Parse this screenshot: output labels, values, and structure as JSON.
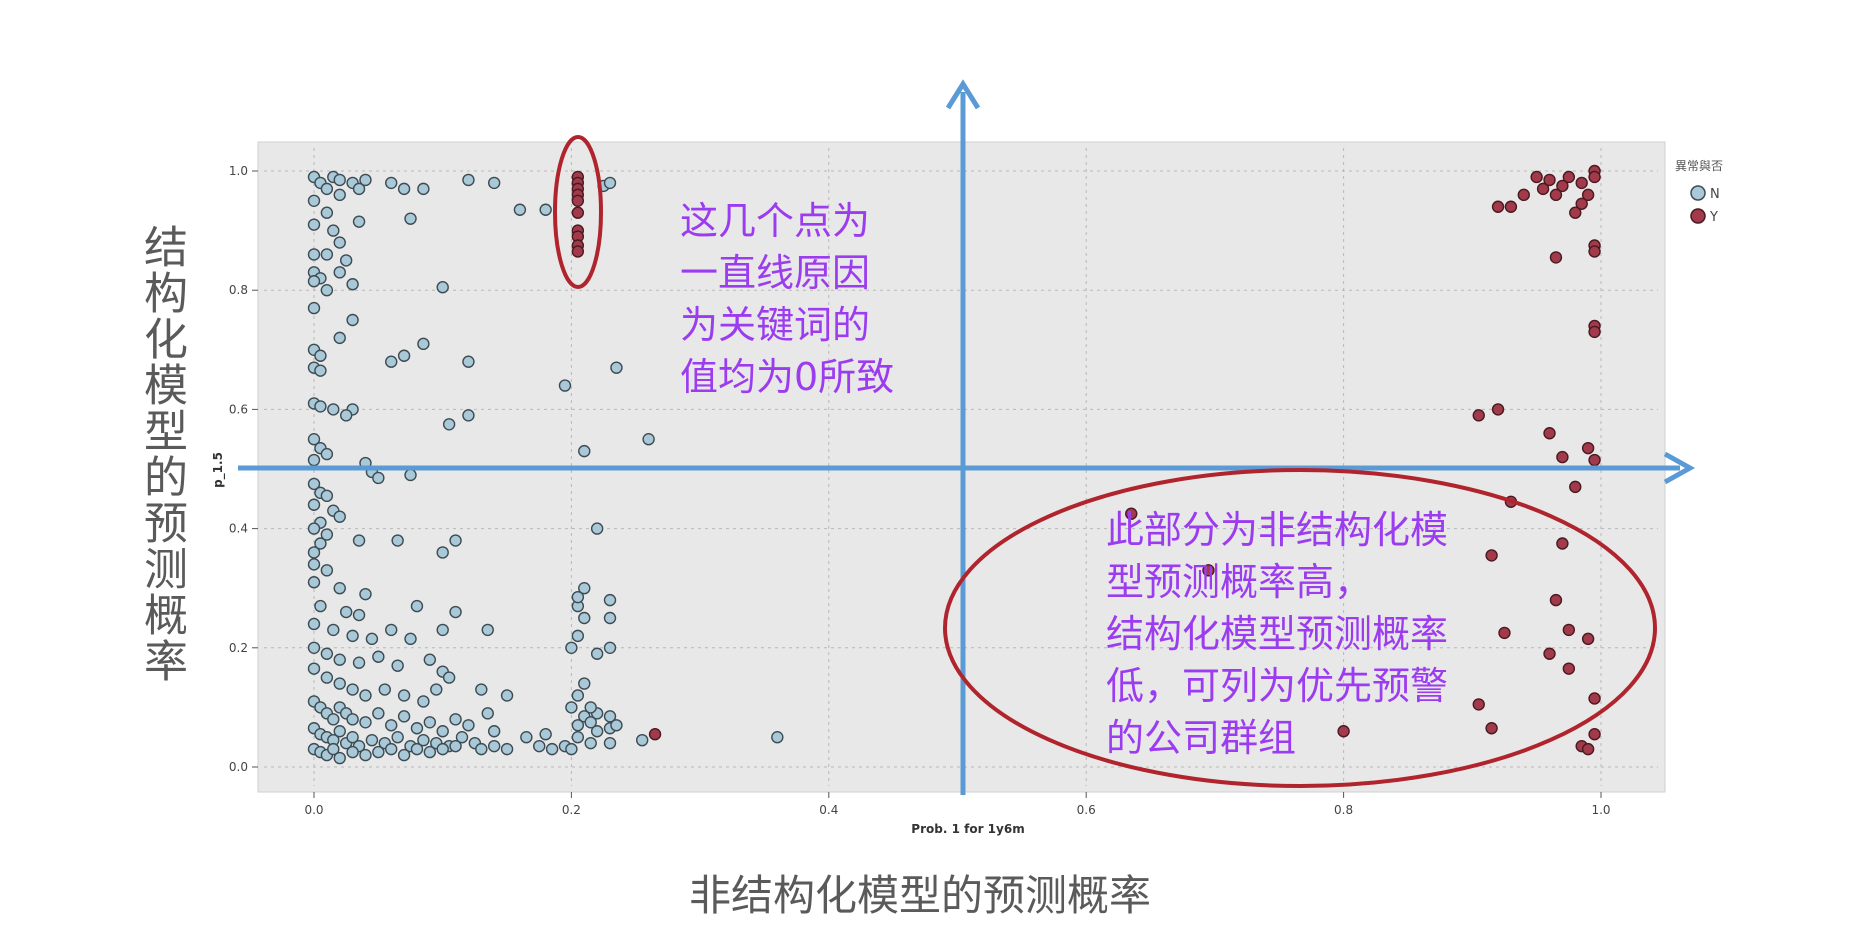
{
  "overlay": {
    "y_axis_title": "结构化模型的预测概率",
    "x_axis_title": "非结构化模型的预测概率",
    "note_straight_line": [
      "这几个点为",
      "一直线原因",
      "为关键词的",
      "值均为0所致"
    ],
    "note_priority": [
      "此部分为非结构化模",
      "型预测概率高，",
      "结构化模型预测概率",
      "低，可列为优先预警",
      "的公司群组"
    ]
  },
  "colors": {
    "panel_bg": "#e8e8e8",
    "point_n": "#a9c9d8",
    "point_y": "#a13a4a",
    "arrow": "#5b9bd5",
    "ellipse": "#b0242d",
    "note_text": "#9c3cf0"
  },
  "chart_data": {
    "type": "scatter",
    "xlabel": "Prob. 1 for 1y6m",
    "ylabel": "p_1.5",
    "xlim": [
      0,
      1.0
    ],
    "ylim": [
      0,
      1.0
    ],
    "xticks": [
      "0.0",
      "0.2",
      "0.4",
      "0.6",
      "0.8",
      "1.0"
    ],
    "yticks": [
      "0.0",
      "0.2",
      "0.4",
      "0.6",
      "0.8",
      "1.0"
    ],
    "grid": true,
    "legend": {
      "title": "異常與否",
      "position": "right",
      "entries": [
        "N",
        "Y"
      ]
    },
    "series": [
      {
        "name": "N",
        "points": [
          [
            0.0,
            0.99
          ],
          [
            0.005,
            0.98
          ],
          [
            0.01,
            0.97
          ],
          [
            0.015,
            0.99
          ],
          [
            0.02,
            0.985
          ],
          [
            0.03,
            0.98
          ],
          [
            0.0,
            0.95
          ],
          [
            0.01,
            0.93
          ],
          [
            0.02,
            0.96
          ],
          [
            0.035,
            0.97
          ],
          [
            0.04,
            0.985
          ],
          [
            0.06,
            0.98
          ],
          [
            0.07,
            0.97
          ],
          [
            0.085,
            0.97
          ],
          [
            0.12,
            0.985
          ],
          [
            0.14,
            0.98
          ],
          [
            0.16,
            0.935
          ],
          [
            0.18,
            0.935
          ],
          [
            0.0,
            0.91
          ],
          [
            0.015,
            0.9
          ],
          [
            0.02,
            0.88
          ],
          [
            0.035,
            0.915
          ],
          [
            0.075,
            0.92
          ],
          [
            0.0,
            0.86
          ],
          [
            0.01,
            0.86
          ],
          [
            0.025,
            0.85
          ],
          [
            0.0,
            0.83
          ],
          [
            0.005,
            0.82
          ],
          [
            0.02,
            0.83
          ],
          [
            0.0,
            0.815
          ],
          [
            0.01,
            0.8
          ],
          [
            0.03,
            0.81
          ],
          [
            0.1,
            0.805
          ],
          [
            0.0,
            0.77
          ],
          [
            0.02,
            0.72
          ],
          [
            0.03,
            0.75
          ],
          [
            0.0,
            0.7
          ],
          [
            0.005,
            0.69
          ],
          [
            0.0,
            0.67
          ],
          [
            0.005,
            0.665
          ],
          [
            0.06,
            0.68
          ],
          [
            0.07,
            0.69
          ],
          [
            0.085,
            0.71
          ],
          [
            0.12,
            0.68
          ],
          [
            0.0,
            0.61
          ],
          [
            0.005,
            0.605
          ],
          [
            0.015,
            0.6
          ],
          [
            0.03,
            0.6
          ],
          [
            0.025,
            0.59
          ],
          [
            0.12,
            0.59
          ],
          [
            0.105,
            0.575
          ],
          [
            0.0,
            0.55
          ],
          [
            0.005,
            0.535
          ],
          [
            0.01,
            0.525
          ],
          [
            0.0,
            0.515
          ],
          [
            0.04,
            0.51
          ],
          [
            0.045,
            0.495
          ],
          [
            0.05,
            0.485
          ],
          [
            0.075,
            0.49
          ],
          [
            0.0,
            0.475
          ],
          [
            0.005,
            0.46
          ],
          [
            0.01,
            0.455
          ],
          [
            0.0,
            0.44
          ],
          [
            0.015,
            0.43
          ],
          [
            0.02,
            0.42
          ],
          [
            0.005,
            0.41
          ],
          [
            0.0,
            0.4
          ],
          [
            0.01,
            0.39
          ],
          [
            0.005,
            0.375
          ],
          [
            0.0,
            0.36
          ],
          [
            0.035,
            0.38
          ],
          [
            0.065,
            0.38
          ],
          [
            0.1,
            0.36
          ],
          [
            0.11,
            0.38
          ],
          [
            0.0,
            0.34
          ],
          [
            0.01,
            0.33
          ],
          [
            0.0,
            0.31
          ],
          [
            0.02,
            0.3
          ],
          [
            0.04,
            0.29
          ],
          [
            0.005,
            0.27
          ],
          [
            0.025,
            0.26
          ],
          [
            0.035,
            0.255
          ],
          [
            0.08,
            0.27
          ],
          [
            0.11,
            0.26
          ],
          [
            0.0,
            0.24
          ],
          [
            0.015,
            0.23
          ],
          [
            0.03,
            0.22
          ],
          [
            0.045,
            0.215
          ],
          [
            0.06,
            0.23
          ],
          [
            0.075,
            0.215
          ],
          [
            0.1,
            0.23
          ],
          [
            0.135,
            0.23
          ],
          [
            0.0,
            0.2
          ],
          [
            0.01,
            0.19
          ],
          [
            0.02,
            0.18
          ],
          [
            0.035,
            0.175
          ],
          [
            0.05,
            0.185
          ],
          [
            0.065,
            0.17
          ],
          [
            0.09,
            0.18
          ],
          [
            0.1,
            0.16
          ],
          [
            0.105,
            0.15
          ],
          [
            0.0,
            0.165
          ],
          [
            0.01,
            0.15
          ],
          [
            0.02,
            0.14
          ],
          [
            0.03,
            0.13
          ],
          [
            0.04,
            0.12
          ],
          [
            0.055,
            0.13
          ],
          [
            0.07,
            0.12
          ],
          [
            0.085,
            0.11
          ],
          [
            0.095,
            0.13
          ],
          [
            0.13,
            0.13
          ],
          [
            0.15,
            0.12
          ],
          [
            0.0,
            0.11
          ],
          [
            0.005,
            0.1
          ],
          [
            0.01,
            0.09
          ],
          [
            0.015,
            0.08
          ],
          [
            0.02,
            0.1
          ],
          [
            0.025,
            0.09
          ],
          [
            0.03,
            0.08
          ],
          [
            0.04,
            0.075
          ],
          [
            0.05,
            0.09
          ],
          [
            0.06,
            0.07
          ],
          [
            0.07,
            0.085
          ],
          [
            0.08,
            0.065
          ],
          [
            0.09,
            0.075
          ],
          [
            0.1,
            0.06
          ],
          [
            0.11,
            0.08
          ],
          [
            0.12,
            0.07
          ],
          [
            0.135,
            0.09
          ],
          [
            0.14,
            0.06
          ],
          [
            0.0,
            0.065
          ],
          [
            0.005,
            0.055
          ],
          [
            0.01,
            0.05
          ],
          [
            0.015,
            0.045
          ],
          [
            0.02,
            0.06
          ],
          [
            0.025,
            0.04
          ],
          [
            0.03,
            0.05
          ],
          [
            0.035,
            0.035
          ],
          [
            0.045,
            0.045
          ],
          [
            0.055,
            0.04
          ],
          [
            0.065,
            0.05
          ],
          [
            0.075,
            0.035
          ],
          [
            0.085,
            0.045
          ],
          [
            0.095,
            0.04
          ],
          [
            0.105,
            0.035
          ],
          [
            0.115,
            0.05
          ],
          [
            0.125,
            0.04
          ],
          [
            0.14,
            0.035
          ],
          [
            0.0,
            0.03
          ],
          [
            0.005,
            0.025
          ],
          [
            0.01,
            0.02
          ],
          [
            0.015,
            0.03
          ],
          [
            0.02,
            0.015
          ],
          [
            0.03,
            0.025
          ],
          [
            0.04,
            0.02
          ],
          [
            0.05,
            0.025
          ],
          [
            0.06,
            0.03
          ],
          [
            0.07,
            0.02
          ],
          [
            0.08,
            0.03
          ],
          [
            0.09,
            0.025
          ],
          [
            0.1,
            0.03
          ],
          [
            0.11,
            0.035
          ],
          [
            0.13,
            0.03
          ],
          [
            0.15,
            0.03
          ],
          [
            0.165,
            0.05
          ],
          [
            0.175,
            0.035
          ],
          [
            0.18,
            0.055
          ],
          [
            0.185,
            0.03
          ],
          [
            0.195,
            0.035
          ],
          [
            0.2,
            0.03
          ],
          [
            0.205,
            0.05
          ],
          [
            0.205,
            0.07
          ],
          [
            0.21,
            0.085
          ],
          [
            0.2,
            0.1
          ],
          [
            0.205,
            0.12
          ],
          [
            0.21,
            0.14
          ],
          [
            0.2,
            0.2
          ],
          [
            0.205,
            0.22
          ],
          [
            0.21,
            0.25
          ],
          [
            0.205,
            0.27
          ],
          [
            0.205,
            0.285
          ],
          [
            0.21,
            0.3
          ],
          [
            0.22,
            0.4
          ],
          [
            0.21,
            0.53
          ],
          [
            0.195,
            0.64
          ],
          [
            0.215,
            0.04
          ],
          [
            0.22,
            0.06
          ],
          [
            0.215,
            0.075
          ],
          [
            0.22,
            0.09
          ],
          [
            0.215,
            0.1
          ],
          [
            0.22,
            0.19
          ],
          [
            0.23,
            0.2
          ],
          [
            0.23,
            0.25
          ],
          [
            0.23,
            0.28
          ],
          [
            0.23,
            0.04
          ],
          [
            0.23,
            0.065
          ],
          [
            0.23,
            0.085
          ],
          [
            0.235,
            0.07
          ],
          [
            0.255,
            0.045
          ],
          [
            0.36,
            0.05
          ],
          [
            0.26,
            0.55
          ],
          [
            0.235,
            0.67
          ],
          [
            0.225,
            0.975
          ],
          [
            0.23,
            0.98
          ]
        ]
      },
      {
        "name": "Y",
        "points": [
          [
            0.205,
            0.99
          ],
          [
            0.205,
            0.98
          ],
          [
            0.205,
            0.97
          ],
          [
            0.205,
            0.96
          ],
          [
            0.205,
            0.95
          ],
          [
            0.205,
            0.93
          ],
          [
            0.205,
            0.9
          ],
          [
            0.205,
            0.89
          ],
          [
            0.205,
            0.875
          ],
          [
            0.205,
            0.865
          ],
          [
            0.265,
            0.055
          ],
          [
            0.95,
            0.99
          ],
          [
            0.96,
            0.985
          ],
          [
            0.975,
            0.99
          ],
          [
            0.985,
            0.98
          ],
          [
            0.995,
            1.0
          ],
          [
            0.995,
            0.99
          ],
          [
            0.94,
            0.96
          ],
          [
            0.955,
            0.97
          ],
          [
            0.97,
            0.975
          ],
          [
            0.965,
            0.96
          ],
          [
            0.985,
            0.945
          ],
          [
            0.99,
            0.96
          ],
          [
            0.92,
            0.94
          ],
          [
            0.93,
            0.94
          ],
          [
            0.98,
            0.93
          ],
          [
            0.995,
            0.875
          ],
          [
            0.965,
            0.855
          ],
          [
            0.995,
            0.865
          ],
          [
            0.995,
            0.74
          ],
          [
            0.995,
            0.73
          ],
          [
            0.905,
            0.59
          ],
          [
            0.92,
            0.6
          ],
          [
            0.96,
            0.56
          ],
          [
            0.97,
            0.52
          ],
          [
            0.99,
            0.535
          ],
          [
            0.995,
            0.515
          ],
          [
            0.98,
            0.47
          ],
          [
            0.93,
            0.445
          ],
          [
            0.97,
            0.375
          ],
          [
            0.915,
            0.355
          ],
          [
            0.975,
            0.23
          ],
          [
            0.965,
            0.28
          ],
          [
            0.925,
            0.225
          ],
          [
            0.96,
            0.19
          ],
          [
            0.975,
            0.165
          ],
          [
            0.99,
            0.215
          ],
          [
            0.995,
            0.115
          ],
          [
            0.905,
            0.105
          ],
          [
            0.915,
            0.065
          ],
          [
            0.985,
            0.035
          ],
          [
            0.99,
            0.03
          ],
          [
            0.995,
            0.055
          ],
          [
            0.8,
            0.06
          ],
          [
            0.635,
            0.425
          ],
          [
            0.695,
            0.33
          ]
        ]
      }
    ]
  }
}
